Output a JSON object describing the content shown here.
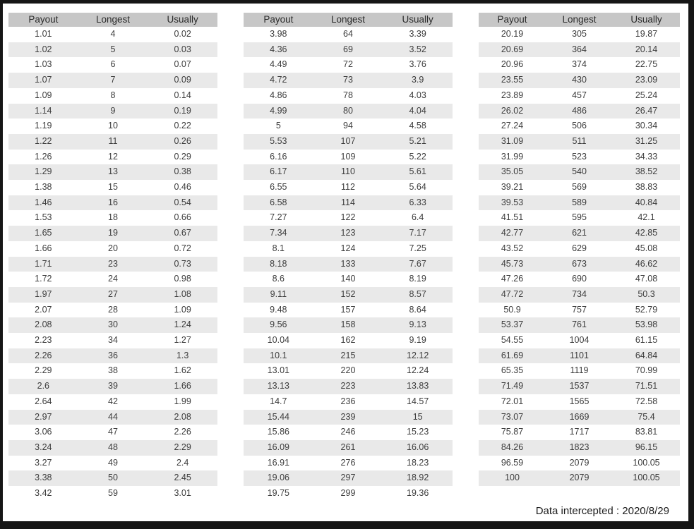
{
  "columns": [
    "Payout",
    "Longest",
    "Usually"
  ],
  "tables": [
    {
      "rows": [
        [
          "1.01",
          "4",
          "0.02"
        ],
        [
          "1.02",
          "5",
          "0.03"
        ],
        [
          "1.03",
          "6",
          "0.07"
        ],
        [
          "1.07",
          "7",
          "0.09"
        ],
        [
          "1.09",
          "8",
          "0.14"
        ],
        [
          "1.14",
          "9",
          "0.19"
        ],
        [
          "1.19",
          "10",
          "0.22"
        ],
        [
          "1.22",
          "11",
          "0.26"
        ],
        [
          "1.26",
          "12",
          "0.29"
        ],
        [
          "1.29",
          "13",
          "0.38"
        ],
        [
          "1.38",
          "15",
          "0.46"
        ],
        [
          "1.46",
          "16",
          "0.54"
        ],
        [
          "1.53",
          "18",
          "0.66"
        ],
        [
          "1.65",
          "19",
          "0.67"
        ],
        [
          "1.66",
          "20",
          "0.72"
        ],
        [
          "1.71",
          "23",
          "0.73"
        ],
        [
          "1.72",
          "24",
          "0.98"
        ],
        [
          "1.97",
          "27",
          "1.08"
        ],
        [
          "2.07",
          "28",
          "1.09"
        ],
        [
          "2.08",
          "30",
          "1.24"
        ],
        [
          "2.23",
          "34",
          "1.27"
        ],
        [
          "2.26",
          "36",
          "1.3"
        ],
        [
          "2.29",
          "38",
          "1.62"
        ],
        [
          "2.6",
          "39",
          "1.66"
        ],
        [
          "2.64",
          "42",
          "1.99"
        ],
        [
          "2.97",
          "44",
          "2.08"
        ],
        [
          "3.06",
          "47",
          "2.26"
        ],
        [
          "3.24",
          "48",
          "2.29"
        ],
        [
          "3.27",
          "49",
          "2.4"
        ],
        [
          "3.38",
          "50",
          "2.45"
        ],
        [
          "3.42",
          "59",
          "3.01"
        ]
      ]
    },
    {
      "rows": [
        [
          "3.98",
          "64",
          "3.39"
        ],
        [
          "4.36",
          "69",
          "3.52"
        ],
        [
          "4.49",
          "72",
          "3.76"
        ],
        [
          "4.72",
          "73",
          "3.9"
        ],
        [
          "4.86",
          "78",
          "4.03"
        ],
        [
          "4.99",
          "80",
          "4.04"
        ],
        [
          "5",
          "94",
          "4.58"
        ],
        [
          "5.53",
          "107",
          "5.21"
        ],
        [
          "6.16",
          "109",
          "5.22"
        ],
        [
          "6.17",
          "110",
          "5.61"
        ],
        [
          "6.55",
          "112",
          "5.64"
        ],
        [
          "6.58",
          "114",
          "6.33"
        ],
        [
          "7.27",
          "122",
          "6.4"
        ],
        [
          "7.34",
          "123",
          "7.17"
        ],
        [
          "8.1",
          "124",
          "7.25"
        ],
        [
          "8.18",
          "133",
          "7.67"
        ],
        [
          "8.6",
          "140",
          "8.19"
        ],
        [
          "9.11",
          "152",
          "8.57"
        ],
        [
          "9.48",
          "157",
          "8.64"
        ],
        [
          "9.56",
          "158",
          "9.13"
        ],
        [
          "10.04",
          "162",
          "9.19"
        ],
        [
          "10.1",
          "215",
          "12.12"
        ],
        [
          "13.01",
          "220",
          "12.24"
        ],
        [
          "13.13",
          "223",
          "13.83"
        ],
        [
          "14.7",
          "236",
          "14.57"
        ],
        [
          "15.44",
          "239",
          "15"
        ],
        [
          "15.86",
          "246",
          "15.23"
        ],
        [
          "16.09",
          "261",
          "16.06"
        ],
        [
          "16.91",
          "276",
          "18.23"
        ],
        [
          "19.06",
          "297",
          "18.92"
        ],
        [
          "19.75",
          "299",
          "19.36"
        ]
      ]
    },
    {
      "rows": [
        [
          "20.19",
          "305",
          "19.87"
        ],
        [
          "20.69",
          "364",
          "20.14"
        ],
        [
          "20.96",
          "374",
          "22.75"
        ],
        [
          "23.55",
          "430",
          "23.09"
        ],
        [
          "23.89",
          "457",
          "25.24"
        ],
        [
          "26.02",
          "486",
          "26.47"
        ],
        [
          "27.24",
          "506",
          "30.34"
        ],
        [
          "31.09",
          "511",
          "31.25"
        ],
        [
          "31.99",
          "523",
          "34.33"
        ],
        [
          "35.05",
          "540",
          "38.52"
        ],
        [
          "39.21",
          "569",
          "38.83"
        ],
        [
          "39.53",
          "589",
          "40.84"
        ],
        [
          "41.51",
          "595",
          "42.1"
        ],
        [
          "42.77",
          "621",
          "42.85"
        ],
        [
          "43.52",
          "629",
          "45.08"
        ],
        [
          "45.73",
          "673",
          "46.62"
        ],
        [
          "47.26",
          "690",
          "47.08"
        ],
        [
          "47.72",
          "734",
          "50.3"
        ],
        [
          "50.9",
          "757",
          "52.79"
        ],
        [
          "53.37",
          "761",
          "53.98"
        ],
        [
          "54.55",
          "1004",
          "61.15"
        ],
        [
          "61.69",
          "1101",
          "64.84"
        ],
        [
          "65.35",
          "1119",
          "70.99"
        ],
        [
          "71.49",
          "1537",
          "71.51"
        ],
        [
          "72.01",
          "1565",
          "72.58"
        ],
        [
          "73.07",
          "1669",
          "75.4"
        ],
        [
          "75.87",
          "1717",
          "83.81"
        ],
        [
          "84.26",
          "1823",
          "96.15"
        ],
        [
          "96.59",
          "2079",
          "100.05"
        ],
        [
          "100",
          "2079",
          "100.05"
        ]
      ]
    }
  ],
  "footer": {
    "text": "Data intercepted : 2020/8/29"
  },
  "colors": {
    "frame": "#161616",
    "page_bg": "#ffffff",
    "header_bg": "#c7c7c7",
    "row_stripe": "#e9e9e9",
    "text": "#3d3d3d"
  }
}
